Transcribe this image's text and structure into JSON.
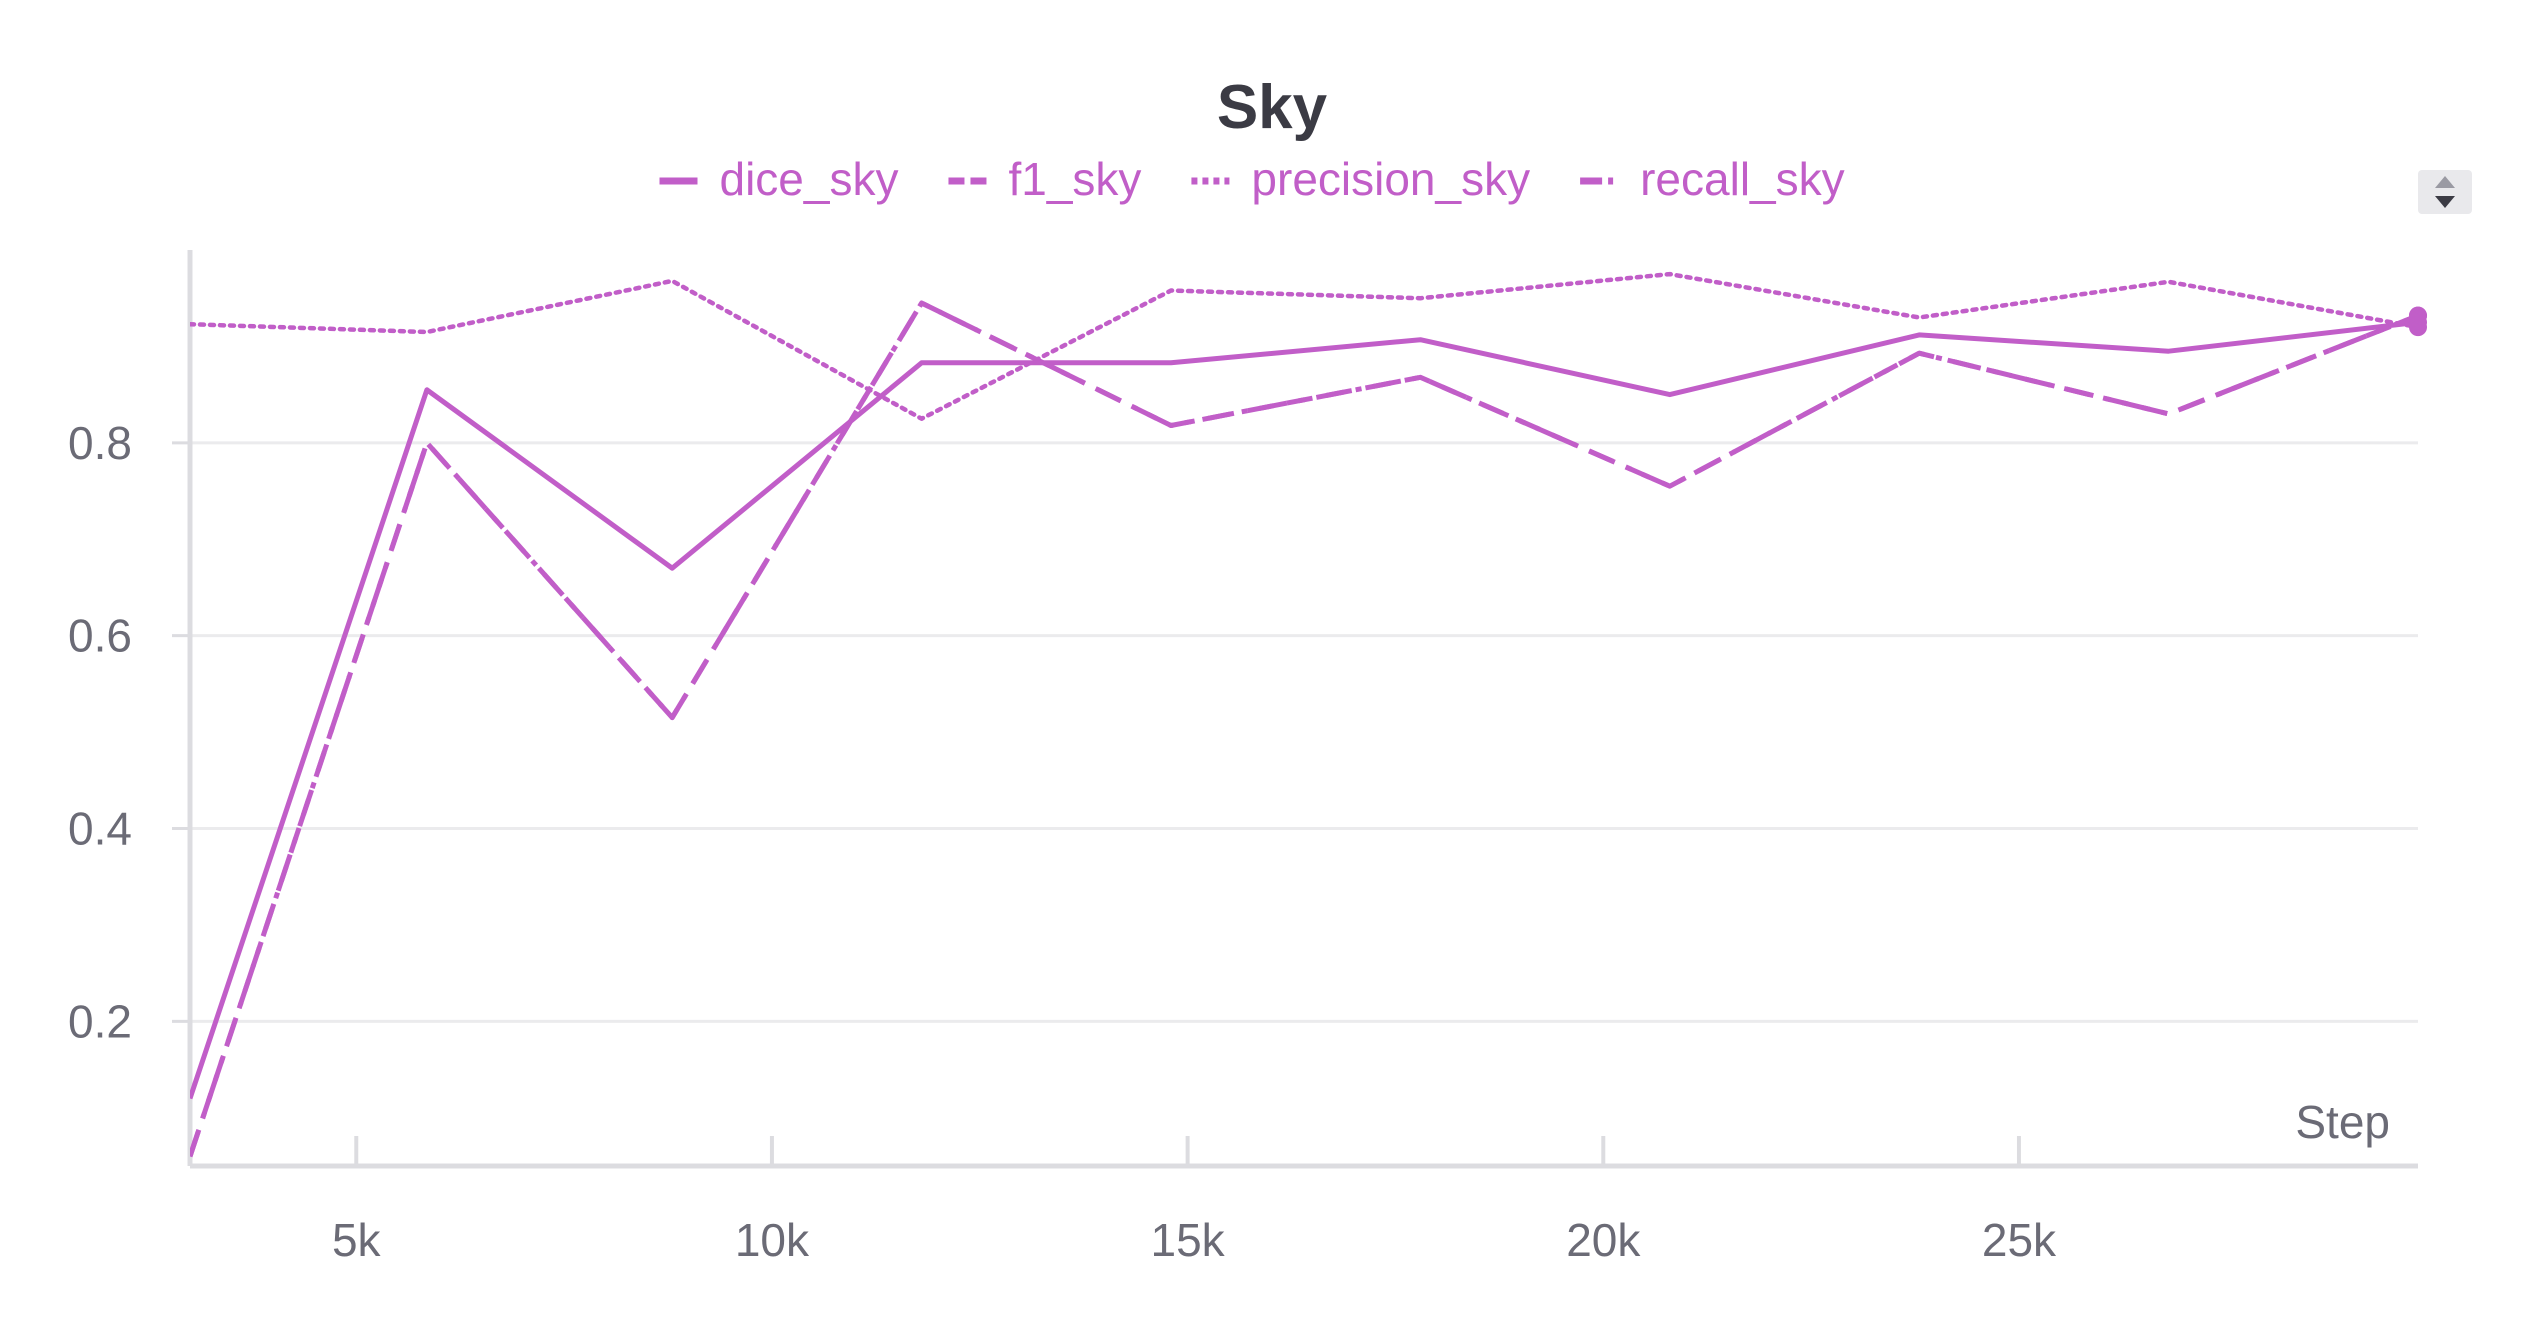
{
  "chart_data": {
    "type": "line",
    "title": "Sky",
    "xlabel": "Step",
    "ylabel": "",
    "xlim": [
      3000,
      29800
    ],
    "ylim": [
      0.05,
      1.0
    ],
    "x_ticks": [
      5000,
      10000,
      15000,
      20000,
      25000
    ],
    "x_tick_labels": [
      "5k",
      "10k",
      "15k",
      "20k",
      "25k"
    ],
    "y_ticks": [
      0.2,
      0.4,
      0.6,
      0.8
    ],
    "y_tick_labels": [
      "0.2",
      "0.4",
      "0.6",
      "0.8"
    ],
    "grid": true,
    "legend_position": "top-center",
    "x": [
      3000,
      5850,
      8800,
      11800,
      14800,
      17800,
      20800,
      23800,
      26800,
      29800
    ],
    "series": [
      {
        "name": "dice_sky",
        "style": "solid",
        "values": [
          0.12,
          0.855,
          0.67,
          0.883,
          0.883,
          0.907,
          0.85,
          0.912,
          0.895,
          0.925
        ]
      },
      {
        "name": "f1_sky",
        "style": "dashed",
        "values": [
          0.06,
          0.8,
          0.515,
          0.945,
          0.818,
          0.868,
          0.755,
          0.893,
          0.83,
          0.932
        ]
      },
      {
        "name": "precision_sky",
        "style": "dotted",
        "values": [
          0.923,
          0.915,
          0.968,
          0.825,
          0.958,
          0.95,
          0.975,
          0.93,
          0.967,
          0.92
        ]
      },
      {
        "name": "recall_sky",
        "style": "dashdot",
        "values": [
          0.06,
          0.8,
          0.515,
          0.945,
          0.818,
          0.868,
          0.755,
          0.893,
          0.83,
          0.932
        ]
      }
    ]
  },
  "colors": {
    "series": "#c15ec8",
    "grid": "#ebebed",
    "axis": "#dcdce0",
    "tick_text": "#6b6b76",
    "title_text": "#3b3b44"
  },
  "controls": {
    "legend_scroll_icon": "scroll-up-down-icon"
  }
}
